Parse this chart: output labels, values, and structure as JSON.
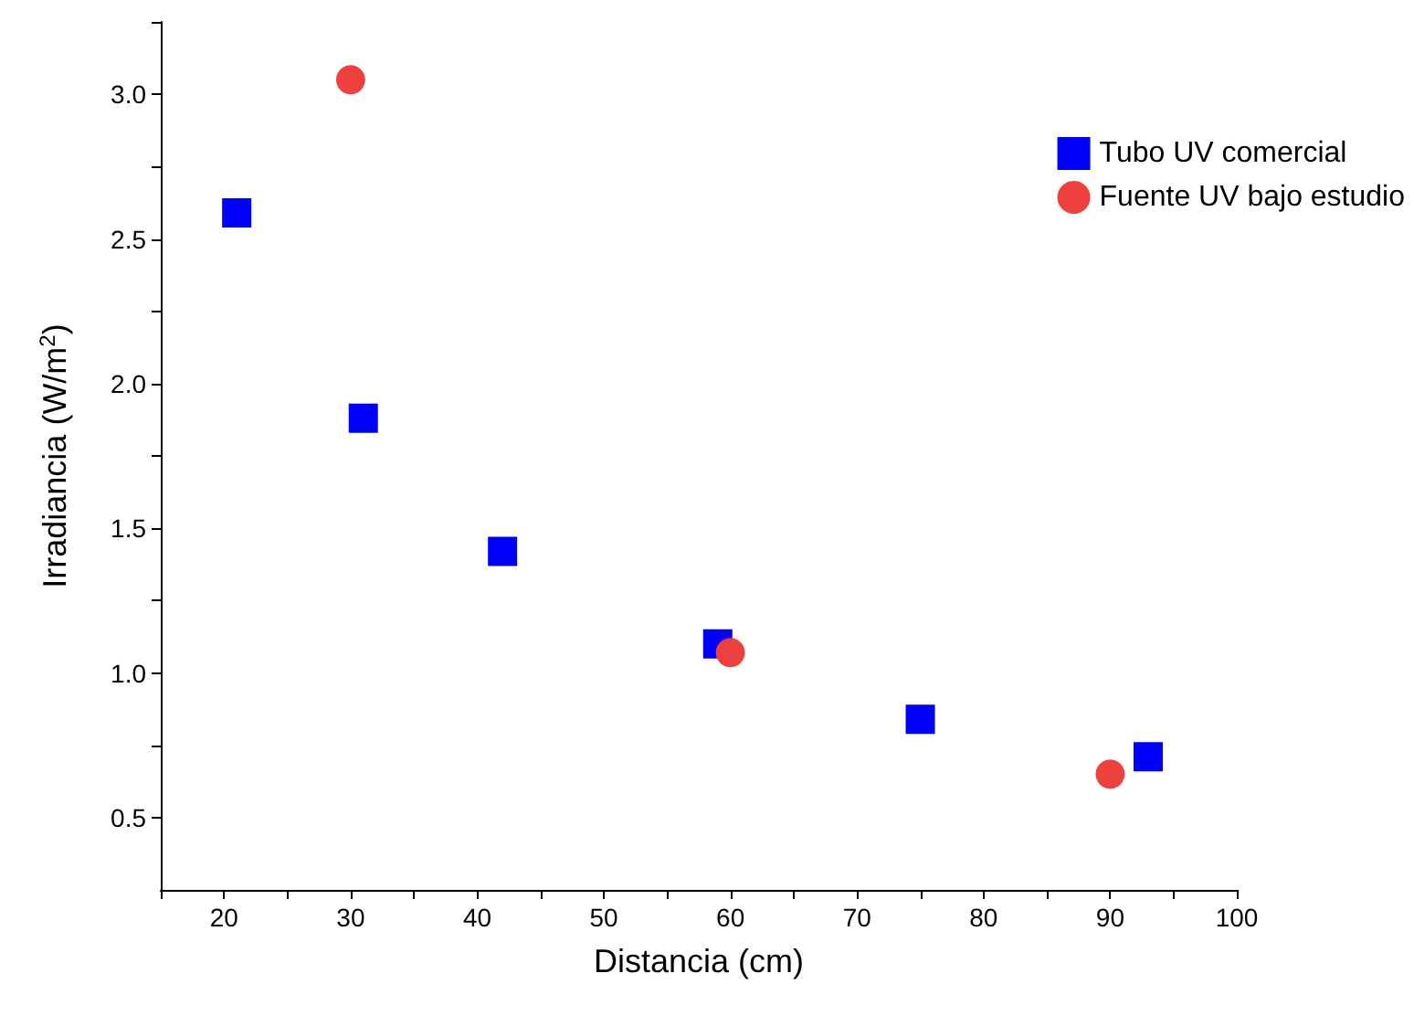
{
  "chart_data": {
    "type": "scatter",
    "xlabel": "Distancia (cm)",
    "ylabel": "Irradiancia (W/m$^{2}$)",
    "xlim": [
      15,
      100
    ],
    "ylim": [
      0.25,
      3.25
    ],
    "xticks": [
      {
        "value": 15,
        "label": null
      },
      20,
      {
        "value": 25,
        "label": null
      },
      30,
      {
        "value": 35,
        "label": null
      },
      40,
      {
        "value": 45,
        "label": null
      },
      50,
      {
        "value": 55,
        "label": null
      },
      60,
      {
        "value": 65,
        "label": null
      },
      70,
      {
        "value": 75,
        "label": null
      },
      80,
      {
        "value": 85,
        "label": null
      },
      90,
      {
        "value": 95,
        "label": null
      },
      100
    ],
    "yticks": [
      {
        "value": 0.5,
        "label": "0.5"
      },
      {
        "value": 0.75,
        "label": null
      },
      {
        "value": 1,
        "label": "1.0"
      },
      {
        "value": 1.25,
        "label": null
      },
      {
        "value": 1.5,
        "label": "1.5"
      },
      {
        "value": 1.75,
        "label": null
      },
      {
        "value": 2,
        "label": "2.0"
      },
      {
        "value": 2.25,
        "label": null
      },
      {
        "value": 2.5,
        "label": "2.5"
      },
      {
        "value": 2.75,
        "label": null
      },
      {
        "value": 3,
        "label": "3.0"
      },
      {
        "value": 3.25,
        "label": null
      }
    ],
    "grid": false,
    "legend": "top right",
    "series": [
      {
        "name": "Tubo UV comercial",
        "color": "#0000ff",
        "marker": "square",
        "x": [
          21,
          31,
          42,
          59,
          75,
          93
        ],
        "values": [
          2.59,
          1.88,
          1.42,
          1.1,
          0.84,
          0.71
        ]
      },
      {
        "name": "Fuente UV bajo estudio",
        "color": "#ef4040",
        "marker": "circle",
        "x": [
          30,
          60,
          90
        ],
        "values": [
          3.05,
          1.07,
          0.65
        ]
      }
    ]
  }
}
